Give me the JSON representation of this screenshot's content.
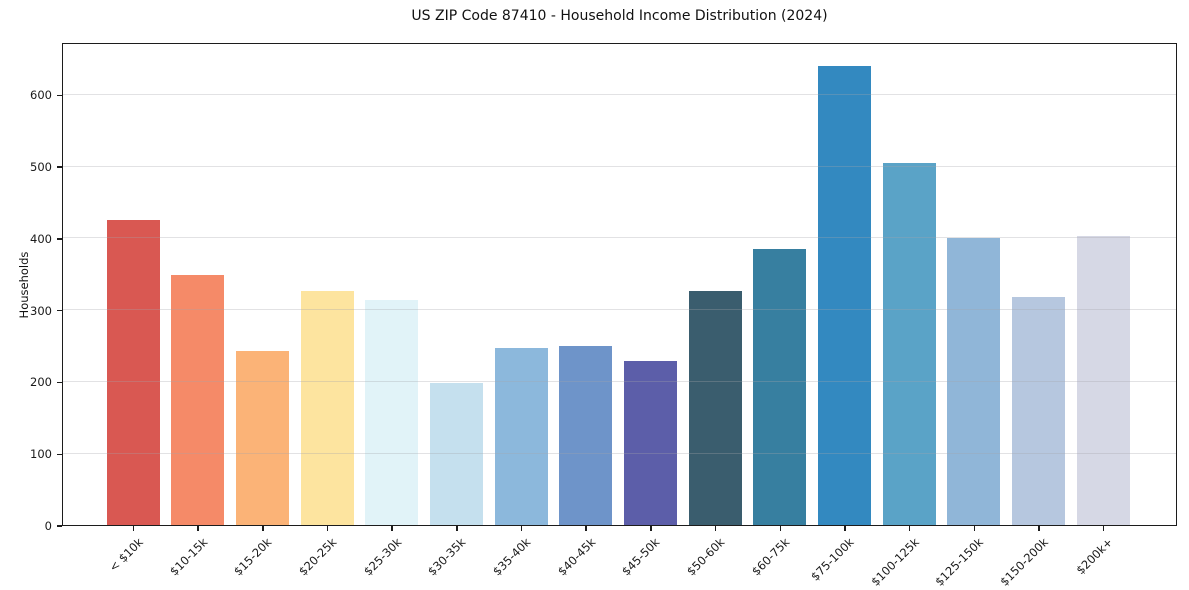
{
  "chart_data": {
    "type": "bar",
    "title": "US ZIP Code 87410 - Household Income Distribution (2024)",
    "xlabel": "",
    "ylabel": "Households",
    "categories": [
      "< $10k",
      "$10-15k",
      "$15-20k",
      "$20-25k",
      "$25-30k",
      "$30-35k",
      "$35-40k",
      "$40-45k",
      "$45-50k",
      "$50-60k",
      "$60-75k",
      "$75-100k",
      "$100-125k",
      "$125-150k",
      "$150-200k",
      "$200k+"
    ],
    "values": [
      425,
      349,
      242,
      326,
      314,
      198,
      247,
      250,
      229,
      326,
      385,
      640,
      504,
      400,
      318,
      403
    ],
    "bar_colors": [
      "#d95852",
      "#f58a68",
      "#fbb377",
      "#fde49f",
      "#e1f3f8",
      "#c5e0ee",
      "#8cb8dc",
      "#6e94c9",
      "#5c5ea9",
      "#3a5d6e",
      "#377fa0",
      "#3389c0",
      "#5aa3c7",
      "#90b6d8",
      "#b6c7df",
      "#d6d8e5"
    ],
    "ylim": [
      0,
      673
    ],
    "yticks": [
      0,
      100,
      200,
      300,
      400,
      500,
      600
    ],
    "grid": "horizontal",
    "legend": "none"
  }
}
